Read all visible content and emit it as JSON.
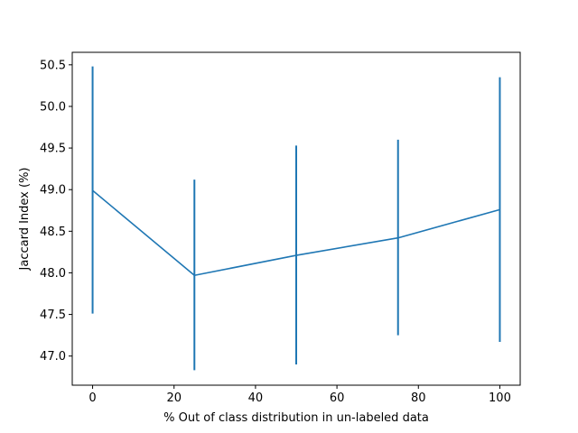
{
  "chart_data": {
    "type": "line",
    "title": "",
    "xlabel": "% Out of class distribution in un-labeled data",
    "ylabel": "Jaccard Index (%)",
    "xlim": [
      -5,
      105
    ],
    "ylim": [
      46.65,
      50.65
    ],
    "xticks": [
      0,
      20,
      40,
      60,
      80,
      100
    ],
    "xtick_labels": [
      "0",
      "20",
      "40",
      "60",
      "80",
      "100"
    ],
    "yticks": [
      47.0,
      47.5,
      48.0,
      48.5,
      49.0,
      49.5,
      50.0,
      50.5
    ],
    "ytick_labels": [
      "47.0",
      "47.5",
      "48.0",
      "48.5",
      "49.0",
      "49.5",
      "50.0",
      "50.5"
    ],
    "grid": false,
    "color": "#1f77b4",
    "series": [
      {
        "x": [
          0,
          25,
          50,
          75,
          100
        ],
        "y": [
          48.99,
          47.97,
          48.21,
          48.42,
          48.76
        ],
        "error_low": [
          47.51,
          46.83,
          46.9,
          47.25,
          47.17
        ],
        "error_high": [
          50.48,
          49.12,
          49.53,
          49.6,
          50.35
        ]
      }
    ]
  }
}
